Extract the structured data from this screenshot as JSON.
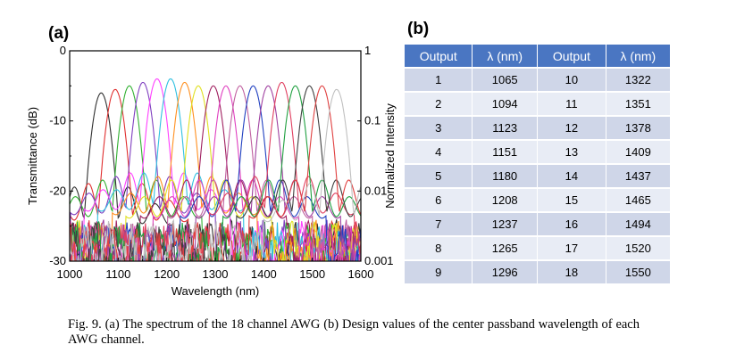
{
  "panel_a_label": "(a)",
  "panel_b_label": "(b)",
  "caption": "Fig. 9. (a) The spectrum of the 18 channel AWG (b) Design values of the center passband wavelength of each AWG channel.",
  "chart_data": {
    "type": "line",
    "xlabel": "Wavelength (nm)",
    "ylabel": "Transmittance (dB)",
    "y2label": "Normalized Intensity",
    "xlim": [
      1000,
      1600
    ],
    "ylim": [
      -30,
      0
    ],
    "x_ticks": [
      "1000",
      "1100",
      "1200",
      "1300",
      "1400",
      "1500",
      "1600"
    ],
    "y_ticks": [
      "0",
      "-10",
      "-20",
      "-30"
    ],
    "y2_ticks": [
      "1",
      "0.1",
      "0.01",
      "0.001"
    ],
    "y2_scale": "log",
    "channel_centers_nm": [
      1065,
      1094,
      1123,
      1151,
      1180,
      1208,
      1237,
      1265,
      1296,
      1322,
      1351,
      1378,
      1409,
      1437,
      1465,
      1494,
      1520,
      1550
    ],
    "peak_db": [
      -6,
      -5.5,
      -5,
      -4.5,
      -4,
      -4,
      -4.5,
      -5,
      -5,
      -5,
      -5,
      -5,
      -5,
      -4.5,
      -5,
      -5,
      -5,
      -5.5
    ],
    "colors": [
      "#303030",
      "#e03030",
      "#30b030",
      "#8040c0",
      "#ff40ff",
      "#30c0e0",
      "#ff9020",
      "#e0e020",
      "#a02060",
      "#e040c0",
      "#c060a0",
      "#2040c0",
      "#a040a0",
      "#e04060",
      "#20a040",
      "#404040",
      "#e04040",
      "#c0c0c0"
    ],
    "grid": false
  },
  "table": {
    "headers": [
      "Output",
      "λ (nm)",
      "Output",
      "λ (nm)"
    ],
    "rows": [
      [
        "1",
        "1065",
        "10",
        "1322"
      ],
      [
        "2",
        "1094",
        "11",
        "1351"
      ],
      [
        "3",
        "1123",
        "12",
        "1378"
      ],
      [
        "4",
        "1151",
        "13",
        "1409"
      ],
      [
        "5",
        "1180",
        "14",
        "1437"
      ],
      [
        "6",
        "1208",
        "15",
        "1465"
      ],
      [
        "7",
        "1237",
        "16",
        "1494"
      ],
      [
        "8",
        "1265",
        "17",
        "1520"
      ],
      [
        "9",
        "1296",
        "18",
        "1550"
      ]
    ]
  }
}
